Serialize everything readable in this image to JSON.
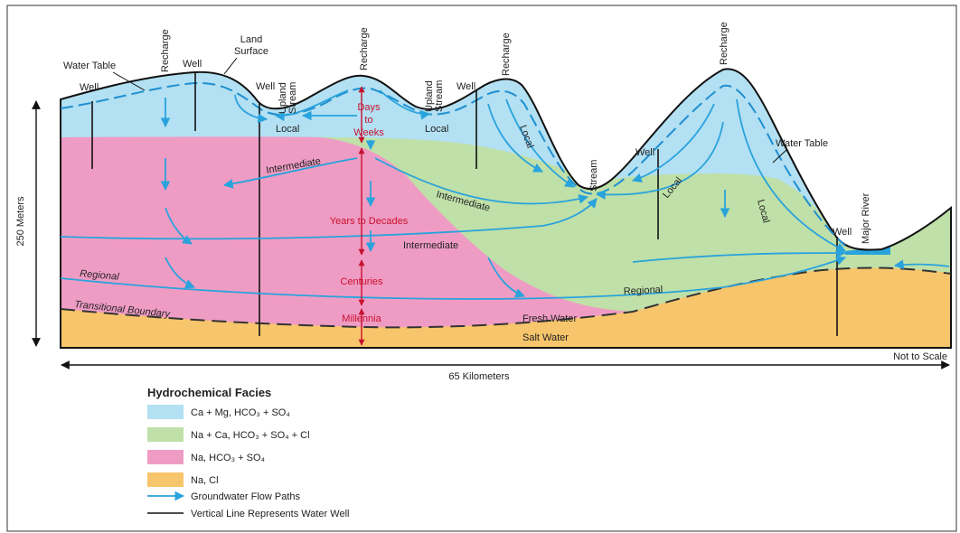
{
  "annotations": {
    "water_table_left": "Water Table",
    "water_table_right": "Water Table",
    "land_surface": [
      "Land",
      "Surface"
    ],
    "recharge": [
      "Recharge",
      "Recharge",
      "Recharge",
      "Recharge"
    ],
    "well": [
      "Well",
      "Well",
      "Well",
      "Well",
      "Well",
      "Well"
    ],
    "upland_stream": [
      [
        "Upland",
        "Stream"
      ],
      [
        "Upland",
        "Stream"
      ]
    ],
    "stream": "Stream",
    "major_river": "Major River",
    "local": [
      "Local",
      "Local",
      "Local",
      "Local",
      "Local"
    ],
    "intermediate": [
      "Intermediate",
      "Intermediate",
      "Intermediate"
    ],
    "regional": [
      "Regional",
      "Regional"
    ],
    "transitional_boundary": "Transitional Boundary",
    "fresh_water": "Fresh Water",
    "salt_water": "Salt Water",
    "days_to_weeks": [
      "Days",
      "to",
      "Weeks"
    ],
    "years_to_decades": "Years to Decades",
    "centuries": "Centuries",
    "millennia": "Millennia"
  },
  "scale": {
    "vertical": "250 Meters",
    "horizontal": "65 Kilometers",
    "note": "Not to Scale"
  },
  "legend": {
    "title": "Hydrochemical Facies",
    "items": [
      "Ca + Mg, HCO₃ + SO₄",
      "Na + Ca, HCO₃ + SO₄ + Cl",
      "Na, HCO₃ + SO₄",
      "Na, Cl",
      "Groundwater Flow Paths",
      "Vertical Line Represents Water Well"
    ]
  }
}
